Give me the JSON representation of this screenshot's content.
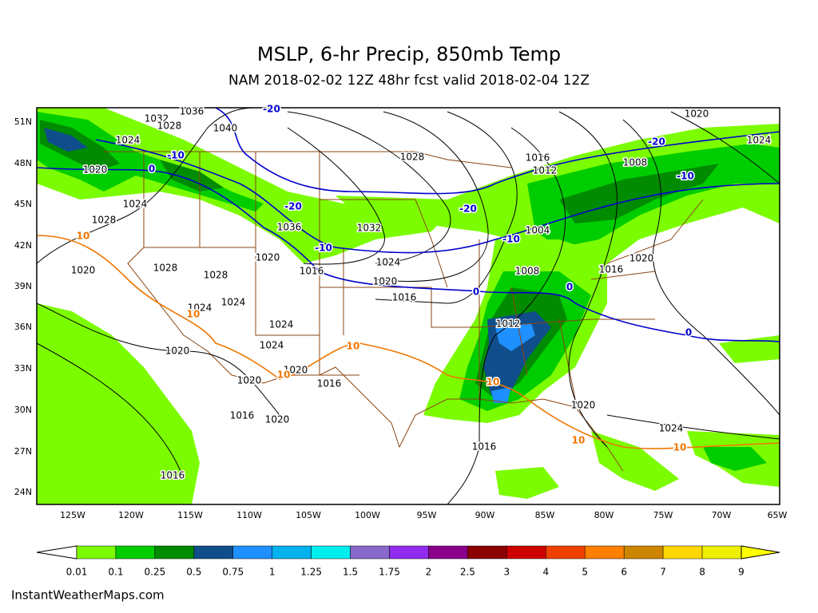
{
  "header": {
    "title": "MSLP, 6-hr Precip, 850mb Temp",
    "subtitle": "NAM 2018-02-02 12Z 48hr fcst valid 2018-02-04 12Z"
  },
  "map": {
    "lat_labels": [
      "51N",
      "48N",
      "45N",
      "42N",
      "39N",
      "36N",
      "33N",
      "30N",
      "27N",
      "24N"
    ],
    "lon_labels": [
      "125W",
      "120W",
      "115W",
      "110W",
      "105W",
      "100W",
      "95W",
      "90W",
      "85W",
      "80W",
      "75W",
      "70W",
      "65W"
    ],
    "isobar_labels": [
      1036,
      1032,
      1028,
      1040,
      1024,
      1020,
      1024,
      1028,
      1020,
      1028,
      1028,
      1024,
      1024,
      1020,
      1016,
      1036,
      1032,
      1024,
      1020,
      1016,
      1024,
      1024,
      1020,
      1020,
      1020,
      1016,
      1016,
      1020,
      1016,
      1016,
      1020,
      1024,
      1028,
      1016,
      1012,
      1008,
      1004,
      1008,
      1016,
      1020,
      1012,
      1020,
      1024
    ],
    "cold_isotherm_labels": [
      -20,
      -10,
      0,
      -10,
      -20,
      -20,
      -10,
      0,
      0,
      0,
      -20,
      -10
    ],
    "warm_isotherm_labels": [
      10,
      10,
      10,
      10,
      10,
      10,
      10
    ],
    "cold_isotherm_color": "#0000cd",
    "warm_isotherm_color": "#ee7600"
  },
  "colorbar": {
    "ticks": [
      0.01,
      0.1,
      0.25,
      0.5,
      0.75,
      1,
      1.25,
      1.5,
      1.75,
      2,
      2.5,
      3,
      4,
      5,
      6,
      7,
      8,
      9
    ],
    "colors": [
      "#7cfc00",
      "#00cd00",
      "#008b00",
      "#104e8b",
      "#1e90ff",
      "#00b2ee",
      "#00eeee",
      "#8968cd",
      "#912cee",
      "#8b008b",
      "#8b0000",
      "#cd0000",
      "#ee4000",
      "#ff7f00",
      "#cd8500",
      "#ffd700",
      "#eeee00"
    ],
    "over_color": "#ffff00"
  },
  "credit": "InstantWeatherMaps.com"
}
